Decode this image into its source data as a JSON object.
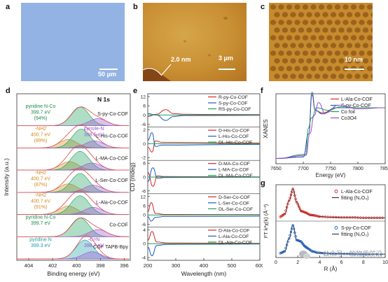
{
  "panels": {
    "a": {
      "label": "a",
      "scale": "50 μm"
    },
    "b": {
      "label": "b",
      "height": "2.0 nm",
      "scale": "3 μm"
    },
    "c": {
      "label": "c",
      "scale": "10 nm"
    },
    "d": {
      "label": "d",
      "title": "N 1s"
    },
    "e": {
      "label": "e"
    },
    "f": {
      "label": "f"
    },
    "g": {
      "label": "g"
    }
  },
  "watermark": "公众号 · 软物质前沿",
  "colors": {
    "red": "#d62728",
    "blue": "#1f5fbf",
    "green": "#1e9e5a",
    "purple": "#9b4fd1",
    "orange_label": "#d08a1e",
    "teal_label": "#19a0a6",
    "green_label": "#1e8a4a",
    "envelope": "#e15759",
    "afm_bg": "#c78b2e",
    "optical_bg": "#93b3e4"
  },
  "chart_data": [
    {
      "panel": "d",
      "type": "line",
      "title": "N 1s",
      "xlabel": "Binding energy (eV)",
      "ylabel": "Intensity (a.u.)",
      "xlim": [
        405,
        395.5
      ],
      "xticks": [
        "404",
        "402",
        "400",
        "398",
        "396"
      ],
      "spectra": [
        {
          "name": "S-py-Co-COF",
          "components": [
            {
              "name": "pyridine N-Co",
              "center": 399.7,
              "color": "green"
            },
            {
              "name": "pyrrole-N",
              "center": 398.2,
              "color": "purple"
            }
          ],
          "annotations": [
            "pyridine N-Co",
            "399.7 eV",
            "(94%)"
          ]
        },
        {
          "name": "L-His-Co-COF",
          "components": [
            {
              "name": "-NH2",
              "center": 400.7,
              "color": "orange"
            },
            {
              "name": "pyridine N-Co",
              "center": 399.6,
              "color": "green"
            },
            {
              "name": "pyrrole-N",
              "center": 398.5,
              "color": "purple"
            }
          ],
          "annotations": [
            "-NH2",
            "400.7 eV",
            "(89%)",
            "pyrrole-N",
            "398.5 eV"
          ]
        },
        {
          "name": "L-MA-Co-COF",
          "components": [
            {
              "name": "-NH2",
              "center": 400.6,
              "color": "orange"
            },
            {
              "name": "pyridine N-Co",
              "center": 399.7,
              "color": "green"
            },
            {
              "name": "pyrrole-N",
              "center": 398.7,
              "color": "purple"
            }
          ],
          "annotations": []
        },
        {
          "name": "L-Ser-Co-COF",
          "components": [
            {
              "name": "-NH2",
              "center": 400.7,
              "color": "orange"
            },
            {
              "name": "pyridine N-Co",
              "center": 399.7,
              "color": "green"
            },
            {
              "name": "pyrrole-N",
              "center": 398.6,
              "color": "purple"
            }
          ],
          "annotations": [
            "-NH2",
            "400.7 eV",
            "(87%)"
          ]
        },
        {
          "name": "L-Ala-Co-COF",
          "components": [
            {
              "name": "-NH2",
              "center": 400.7,
              "color": "orange"
            },
            {
              "name": "pyridine N-Co",
              "center": 399.7,
              "color": "green"
            },
            {
              "name": "pyrrole-N",
              "center": 398.6,
              "color": "purple"
            }
          ],
          "annotations": [
            "-NH2",
            "400.7 eV",
            "(91%)"
          ]
        },
        {
          "name": "Co-COF",
          "components": [
            {
              "name": "pyridine N-Co",
              "center": 399.7,
              "color": "green"
            },
            {
              "name": "pyrrole-N",
              "center": 398.2,
              "color": "purple"
            }
          ],
          "annotations": [
            "pyridine N-Co",
            "399.7 eV"
          ]
        },
        {
          "name": "COF TAPB-Bpy",
          "components": [
            {
              "name": "pyridine N",
              "center": 399.3,
              "color": "teal"
            },
            {
              "name": "-C=N",
              "center": 398.7,
              "color": "purple"
            }
          ],
          "annotations": [
            "pyridine N",
            "399.3 eV",
            "-C=N",
            "398.7 eV"
          ]
        }
      ]
    },
    {
      "panel": "e",
      "type": "line",
      "xlabel": "Wavelength (nm)",
      "ylabel": "CD (mdeg)",
      "xlim": [
        200,
        600
      ],
      "xticks": [
        200,
        300,
        400,
        500,
        600
      ],
      "groups": [
        {
          "yticks": [
            -6,
            0,
            6,
            12
          ],
          "series": [
            {
              "name": "R-py-Co-COF",
              "color": "red",
              "points": [
                [
                  200,
                  -1
                ],
                [
                  230,
                  0.5
                ],
                [
                  265,
                  3.5
                ],
                [
                  290,
                  1
                ],
                [
                  330,
                  0.5
                ],
                [
                  400,
                  0.4
                ],
                [
                  600,
                  0.3
                ]
              ]
            },
            {
              "name": "S-py-Co-COF",
              "color": "blue",
              "points": [
                [
                  200,
                  1
                ],
                [
                  230,
                  0
                ],
                [
                  265,
                  -3.5
                ],
                [
                  290,
                  -1
                ],
                [
                  330,
                  -0.3
                ],
                [
                  400,
                  -0.3
                ],
                [
                  600,
                  -0.2
                ]
              ]
            },
            {
              "name": "RS-py-Co-COF",
              "color": "green",
              "points": [
                [
                  200,
                  0
                ],
                [
                  600,
                  0
                ]
              ]
            }
          ]
        },
        {
          "yticks": [
            -2,
            0,
            2
          ],
          "series": [
            {
              "name": "D-His-Co-COF",
              "color": "red",
              "points": [
                [
                  200,
                  -0.5
                ],
                [
                  215,
                  -1.2
                ],
                [
                  228,
                  0.4
                ],
                [
                  250,
                  0.2
                ],
                [
                  600,
                  0.1
                ]
              ]
            },
            {
              "name": "L-His-Co-COF",
              "color": "blue",
              "points": [
                [
                  200,
                  0.5
                ],
                [
                  215,
                  1.6
                ],
                [
                  228,
                  -0.4
                ],
                [
                  250,
                  -0.2
                ],
                [
                  600,
                  -0.1
                ]
              ]
            },
            {
              "name": "DL-His-Co-COF",
              "color": "green",
              "points": [
                [
                  200,
                  0
                ],
                [
                  600,
                  0
                ]
              ]
            }
          ]
        },
        {
          "yticks": [
            -6,
            0,
            6
          ],
          "series": [
            {
              "name": "D-MA-Co-COF",
              "color": "red",
              "points": [
                [
                  200,
                  2
                ],
                [
                  218,
                  -4
                ],
                [
                  235,
                  0.5
                ],
                [
                  260,
                  0.2
                ],
                [
                  600,
                  0.1
                ]
              ]
            },
            {
              "name": "L-MA-Co-COF",
              "color": "blue",
              "points": [
                [
                  200,
                  -2
                ],
                [
                  218,
                  4
                ],
                [
                  235,
                  -0.5
                ],
                [
                  260,
                  -0.2
                ],
                [
                  600,
                  -0.1
                ]
              ]
            },
            {
              "name": "DL-MA-Co-COF",
              "color": "green",
              "points": [
                [
                  200,
                  0
                ],
                [
                  600,
                  0
                ]
              ]
            }
          ]
        },
        {
          "yticks": [
            -6,
            0,
            6,
            12
          ],
          "series": [
            {
              "name": "D-Ser-Co-COF",
              "color": "red",
              "points": [
                [
                  200,
                  2
                ],
                [
                  212,
                  8
                ],
                [
                  228,
                  1
                ],
                [
                  260,
                  0.3
                ],
                [
                  600,
                  0.2
                ]
              ]
            },
            {
              "name": "L-Ser-Co-COF",
              "color": "blue",
              "points": [
                [
                  200,
                  -1
                ],
                [
                  212,
                  -4
                ],
                [
                  228,
                  -1.5
                ],
                [
                  260,
                  -1
                ],
                [
                  400,
                  -1
                ],
                [
                  600,
                  -0.8
                ]
              ]
            },
            {
              "name": "DL-Ser-Co-COF",
              "color": "green",
              "points": [
                [
                  200,
                  0
                ],
                [
                  600,
                  0
                ]
              ]
            }
          ]
        },
        {
          "yticks": [
            -4,
            0,
            4
          ],
          "series": [
            {
              "name": "D-Ala-Co-COF",
              "color": "red",
              "points": [
                [
                  200,
                  1
                ],
                [
                  215,
                  3.5
                ],
                [
                  232,
                  0.5
                ],
                [
                  270,
                  0.2
                ],
                [
                  600,
                  0.1
                ]
              ]
            },
            {
              "name": "L-Ala-Co-COF",
              "color": "blue",
              "points": [
                [
                  200,
                  -1
                ],
                [
                  215,
                  -3.5
                ],
                [
                  232,
                  -0.5
                ],
                [
                  270,
                  -0.2
                ],
                [
                  600,
                  -0.1
                ]
              ]
            },
            {
              "name": "DL-Ala-Co-COF",
              "color": "green",
              "points": [
                [
                  200,
                  0
                ],
                [
                  600,
                  0
                ]
              ]
            }
          ]
        }
      ]
    },
    {
      "panel": "f",
      "type": "line",
      "xlabel": "Energy (eV)",
      "ylabel": "XANES",
      "xlim": [
        7650,
        7850
      ],
      "xticks": [
        7650,
        7700,
        7750,
        7800,
        7850
      ],
      "series": [
        {
          "name": "L-Ala-Co-COF",
          "color": "red",
          "points": [
            [
              7650,
              0.02
            ],
            [
              7700,
              0.05
            ],
            [
              7710,
              0.5
            ],
            [
              7716,
              1.25
            ],
            [
              7722,
              0.95
            ],
            [
              7735,
              0.9
            ],
            [
              7760,
              1.0
            ],
            [
              7800,
              1.0
            ],
            [
              7850,
              1.0
            ]
          ]
        },
        {
          "name": "S-py-Co-COF",
          "color": "blue",
          "points": [
            [
              7650,
              0.02
            ],
            [
              7700,
              0.05
            ],
            [
              7710,
              0.5
            ],
            [
              7716,
              1.3
            ],
            [
              7722,
              0.95
            ],
            [
              7735,
              0.88
            ],
            [
              7760,
              1.0
            ],
            [
              7800,
              1.0
            ],
            [
              7850,
              1.0
            ]
          ]
        },
        {
          "name": "Co foil",
          "color": "green",
          "points": [
            [
              7650,
              0.02
            ],
            [
              7705,
              0.1
            ],
            [
              7709,
              0.6
            ],
            [
              7715,
              0.8
            ],
            [
              7725,
              1.0
            ],
            [
              7745,
              0.95
            ],
            [
              7770,
              1.02
            ],
            [
              7800,
              1.0
            ],
            [
              7850,
              1.0
            ]
          ]
        },
        {
          "name": "Co3O4",
          "color": "purple",
          "points": [
            [
              7650,
              0.02
            ],
            [
              7705,
              0.08
            ],
            [
              7712,
              0.5
            ],
            [
              7720,
              0.85
            ],
            [
              7728,
              1.1
            ],
            [
              7740,
              0.9
            ],
            [
              7765,
              1.05
            ],
            [
              7800,
              0.98
            ],
            [
              7850,
              1.0
            ]
          ]
        }
      ]
    },
    {
      "panel": "g",
      "type": "scatter",
      "xlabel": "R (Å)",
      "ylabel": "FT k²χ(k) (Å⁻³)",
      "xlim": [
        0,
        10
      ],
      "xticks": [
        0,
        2,
        4,
        6,
        8,
        10
      ],
      "groups": [
        {
          "data_name": "L-Ala-Co-COF",
          "fit_name": "fitting (N₂O₄)",
          "color": "red",
          "points": [
            [
              0.4,
              0.05
            ],
            [
              0.8,
              0.15
            ],
            [
              1.2,
              0.6
            ],
            [
              1.55,
              1.0
            ],
            [
              1.9,
              0.55
            ],
            [
              2.3,
              0.25
            ],
            [
              2.7,
              0.2
            ],
            [
              3.1,
              0.12
            ],
            [
              3.5,
              0.1
            ],
            [
              4,
              0.06
            ],
            [
              5,
              0.04
            ],
            [
              6,
              0.03
            ],
            [
              7,
              0.03
            ],
            [
              8,
              0.02
            ],
            [
              9,
              0.02
            ],
            [
              10,
              0.02
            ]
          ]
        },
        {
          "data_name": "S-py-Co-COF",
          "fit_name": "fitting (N₂O₂)",
          "color": "blue",
          "points": [
            [
              0.4,
              0.05
            ],
            [
              0.8,
              0.12
            ],
            [
              1.2,
              0.55
            ],
            [
              1.55,
              1.0
            ],
            [
              1.9,
              0.5
            ],
            [
              2.3,
              0.45
            ],
            [
              2.6,
              0.3
            ],
            [
              2.9,
              0.22
            ],
            [
              3.3,
              0.12
            ],
            [
              3.8,
              0.07
            ],
            [
              4.5,
              0.05
            ],
            [
              5.5,
              0.03
            ],
            [
              6.5,
              0.03
            ],
            [
              7.5,
              0.02
            ],
            [
              8.5,
              0.02
            ],
            [
              10,
              0.02
            ]
          ]
        }
      ]
    }
  ]
}
